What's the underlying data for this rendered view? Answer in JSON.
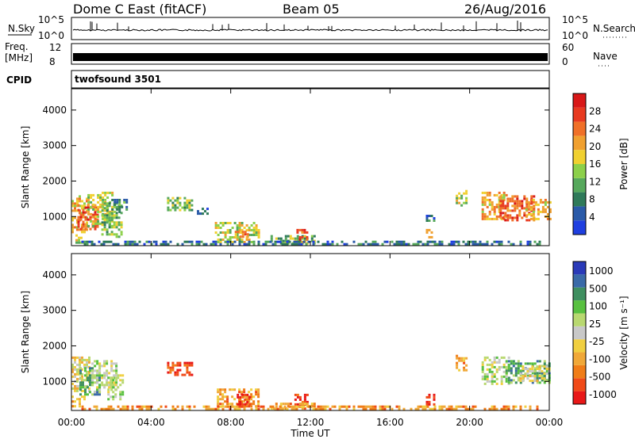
{
  "header": {
    "radar": "Dome C East (fitACF)",
    "beam": "Beam 05",
    "date": "26/Aug/2016"
  },
  "strip_panels": {
    "nsky_label": "N.Sky",
    "nsearch_label": "N.Search",
    "nsky_ticks": [
      "10^5",
      "10^0"
    ],
    "nsearch_ticks": [
      "10^5",
      "10^0"
    ],
    "freq_label_1": "Freq.",
    "freq_label_2": "[MHz]",
    "freq_ticks": [
      "12",
      "8"
    ],
    "nave_label": "Nave",
    "nave_ticks": [
      "60",
      "0"
    ],
    "cpid_label": "CPID",
    "cpid_value": "twofsound 3501"
  },
  "colors": {
    "power_scale": [
      "#1f3fe0",
      "#2a5aa8",
      "#2f7a5a",
      "#56a85c",
      "#8cd04a",
      "#f0d030",
      "#f0a030",
      "#f07028",
      "#e83a20",
      "#d81818"
    ],
    "velocity_scale": [
      "#e81818",
      "#f04a18",
      "#f07d18",
      "#f0a838",
      "#f0cf40",
      "#c8c8c8",
      "#b8d870",
      "#58c040",
      "#3f8f60",
      "#3a6aa8",
      "#2a3ab8"
    ]
  },
  "chart_data": [
    {
      "type": "heatmap",
      "title": "",
      "xlabel": "",
      "ylabel": "Slant Range [km]",
      "x_ticks": [
        "00:00",
        "04:00",
        "08:00",
        "12:00",
        "16:00",
        "20:00",
        "00:00"
      ],
      "xlim": [
        0,
        24
      ],
      "ylim": [
        180,
        4600
      ],
      "y_ticks": [
        1000,
        2000,
        3000,
        4000
      ],
      "colorbar": {
        "label": "Power [dB]",
        "range": [
          0,
          32
        ],
        "ticks": [
          4,
          8,
          12,
          16,
          20,
          24,
          28
        ]
      },
      "regions": [
        {
          "t0": 0.0,
          "t1": 0.8,
          "r0": 550,
          "r1": 1600,
          "value": 22
        },
        {
          "t0": 0.3,
          "t1": 1.3,
          "r0": 650,
          "r1": 1350,
          "value": 27
        },
        {
          "t0": 0.8,
          "t1": 2.0,
          "r0": 700,
          "r1": 1700,
          "value": 16
        },
        {
          "t0": 1.5,
          "t1": 2.5,
          "r0": 450,
          "r1": 1400,
          "value": 14
        },
        {
          "t0": 2.0,
          "t1": 2.8,
          "r0": 1100,
          "r1": 1500,
          "value": 10
        },
        {
          "t0": 0.2,
          "t1": 0.6,
          "r0": 250,
          "r1": 500,
          "value": 18
        },
        {
          "t0": 4.8,
          "t1": 6.0,
          "r0": 1150,
          "r1": 1550,
          "value": 14
        },
        {
          "t0": 6.3,
          "t1": 6.8,
          "r0": 1100,
          "r1": 1250,
          "value": 8
        },
        {
          "t0": 7.2,
          "t1": 9.4,
          "r0": 300,
          "r1": 850,
          "value": 18
        },
        {
          "t0": 8.2,
          "t1": 8.8,
          "r0": 400,
          "r1": 600,
          "value": 24
        },
        {
          "t0": 10.0,
          "t1": 12.2,
          "r0": 250,
          "r1": 480,
          "value": 14
        },
        {
          "t0": 11.3,
          "t1": 11.8,
          "r0": 250,
          "r1": 650,
          "value": 26
        },
        {
          "t0": 17.8,
          "t1": 18.2,
          "r0": 350,
          "r1": 650,
          "value": 20
        },
        {
          "t0": 17.8,
          "t1": 18.2,
          "r0": 850,
          "r1": 1050,
          "value": 8
        },
        {
          "t0": 19.3,
          "t1": 19.8,
          "r0": 1300,
          "r1": 1750,
          "value": 18
        },
        {
          "t0": 20.6,
          "t1": 21.8,
          "r0": 900,
          "r1": 1700,
          "value": 22
        },
        {
          "t0": 21.5,
          "t1": 23.2,
          "r0": 900,
          "r1": 1600,
          "value": 27
        },
        {
          "t0": 22.8,
          "t1": 24.0,
          "r0": 950,
          "r1": 1500,
          "value": 20
        },
        {
          "t0": 0.5,
          "t1": 23.5,
          "r0": 200,
          "r1": 320,
          "value": 8
        }
      ]
    },
    {
      "type": "heatmap",
      "title": "",
      "xlabel": "Time UT",
      "ylabel": "Slant Range [km]",
      "x_ticks": [
        "00:00",
        "04:00",
        "08:00",
        "12:00",
        "16:00",
        "20:00",
        "00:00"
      ],
      "xlim": [
        0,
        24
      ],
      "ylim": [
        180,
        4600
      ],
      "y_ticks": [
        1000,
        2000,
        3000,
        4000
      ],
      "colorbar": {
        "label": "Velocity [m s⁻¹]",
        "tick_labels": [
          "-1000",
          "-500",
          "-100",
          "-25",
          "25",
          "100",
          "500",
          "1000"
        ]
      },
      "regions": [
        {
          "t0": 0.0,
          "t1": 0.9,
          "r0": 700,
          "r1": 1700,
          "value": 25
        },
        {
          "t0": 0.4,
          "t1": 1.4,
          "r0": 650,
          "r1": 1400,
          "value": 500
        },
        {
          "t0": 1.0,
          "t1": 2.3,
          "r0": 700,
          "r1": 1600,
          "value": 100
        },
        {
          "t0": 1.8,
          "t1": 2.6,
          "r0": 500,
          "r1": 1200,
          "value": 100
        },
        {
          "t0": 0.0,
          "t1": 0.6,
          "r0": 300,
          "r1": 600,
          "value": -25
        },
        {
          "t0": 4.8,
          "t1": 6.1,
          "r0": 1150,
          "r1": 1550,
          "value": -500
        },
        {
          "t0": 7.3,
          "t1": 9.4,
          "r0": 300,
          "r1": 800,
          "value": -100
        },
        {
          "t0": 8.3,
          "t1": 9.0,
          "r0": 350,
          "r1": 650,
          "value": -500
        },
        {
          "t0": 11.2,
          "t1": 11.8,
          "r0": 250,
          "r1": 650,
          "value": -500
        },
        {
          "t0": 10.0,
          "t1": 12.2,
          "r0": 250,
          "r1": 400,
          "value": -100
        },
        {
          "t0": 17.8,
          "t1": 18.2,
          "r0": 350,
          "r1": 650,
          "value": -500
        },
        {
          "t0": 19.3,
          "t1": 19.8,
          "r0": 1300,
          "r1": 1750,
          "value": -100
        },
        {
          "t0": 20.6,
          "t1": 22.0,
          "r0": 950,
          "r1": 1700,
          "value": 100
        },
        {
          "t0": 21.8,
          "t1": 24.0,
          "r0": 950,
          "r1": 1600,
          "value": 500
        },
        {
          "t0": 22.5,
          "t1": 24.0,
          "r0": 1000,
          "r1": 1450,
          "value": 25
        },
        {
          "t0": 0.5,
          "t1": 23.5,
          "r0": 200,
          "r1": 320,
          "value": -100
        }
      ]
    }
  ]
}
